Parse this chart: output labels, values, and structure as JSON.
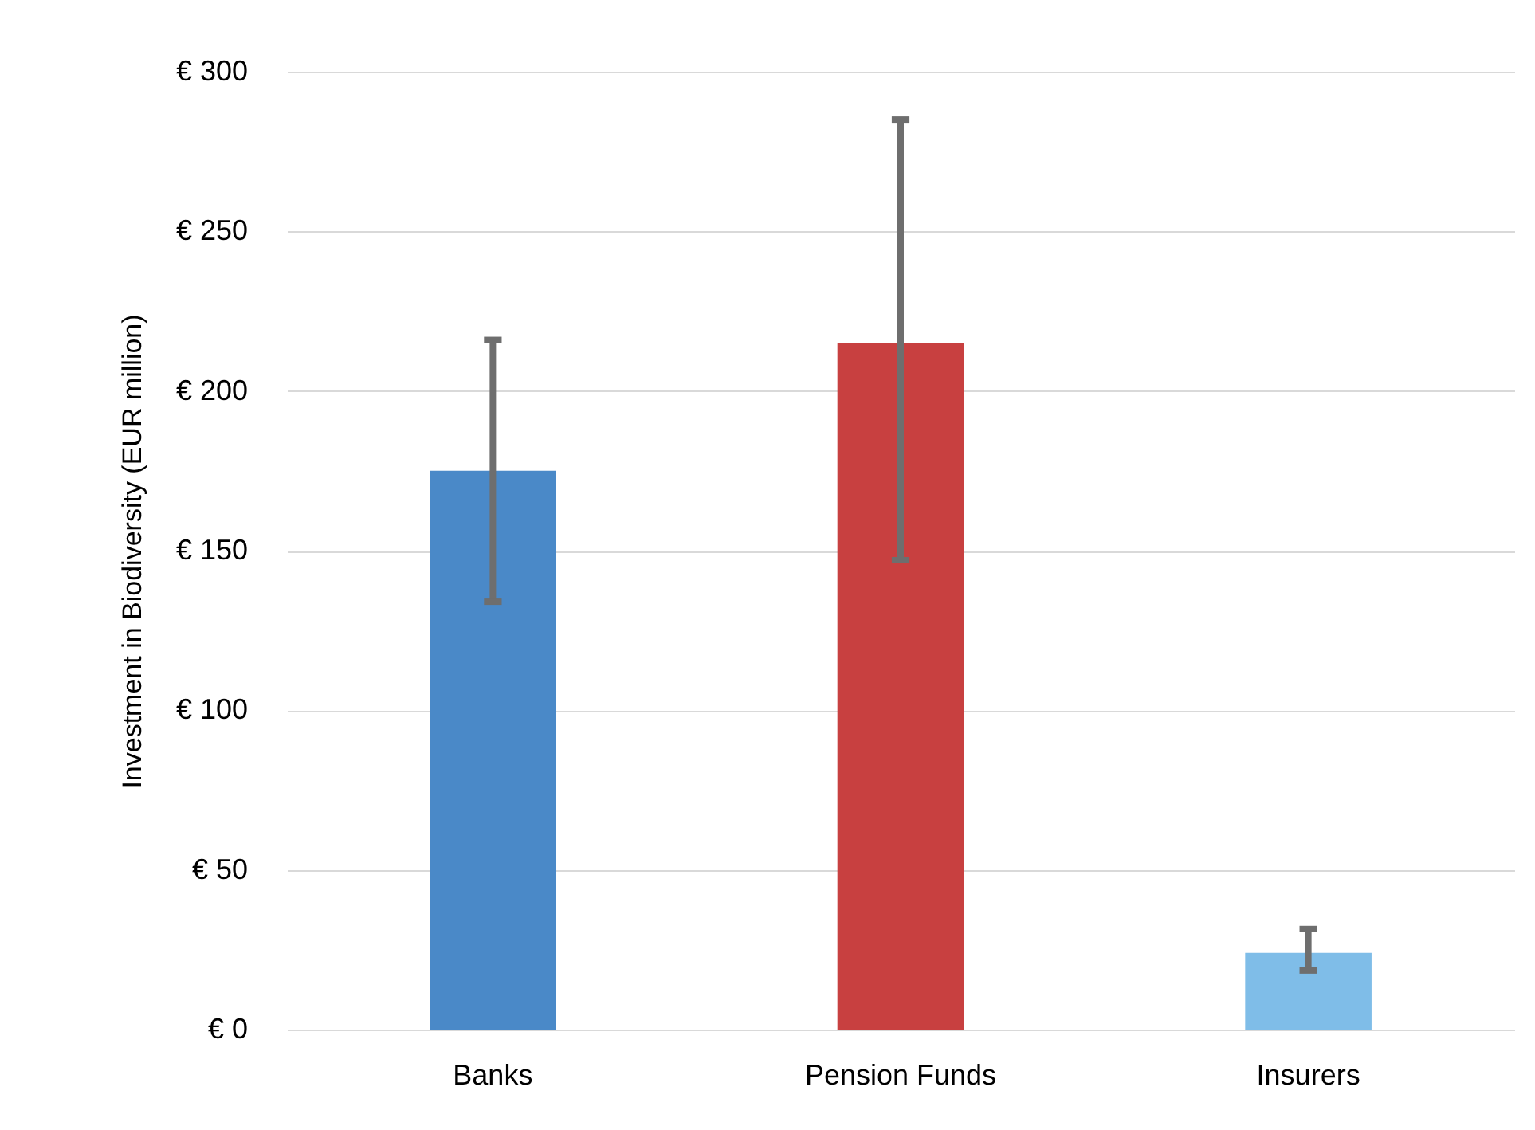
{
  "chart_data": {
    "type": "bar",
    "ylabel": "Investment in Biodiversity (EUR million)",
    "categories": [
      "Banks",
      "Pension Funds",
      "Insurers"
    ],
    "values": [
      175,
      215,
      24
    ],
    "colors": [
      "#4a89c8",
      "#c84040",
      "#7fbde8"
    ],
    "errors": [
      [
        134,
        216
      ],
      [
        147,
        285
      ],
      [
        18.5,
        31.5
      ]
    ],
    "ylim": [
      0,
      300
    ],
    "yticks": [
      {
        "value": 0,
        "label": "€ 0"
      },
      {
        "value": 50,
        "label": "€ 50"
      },
      {
        "value": 100,
        "label": "€ 100"
      },
      {
        "value": 150,
        "label": "€ 150"
      },
      {
        "value": 200,
        "label": "€ 200"
      },
      {
        "value": 250,
        "label": "€ 250"
      },
      {
        "value": 300,
        "label": "€ 300"
      }
    ],
    "grid": true
  }
}
